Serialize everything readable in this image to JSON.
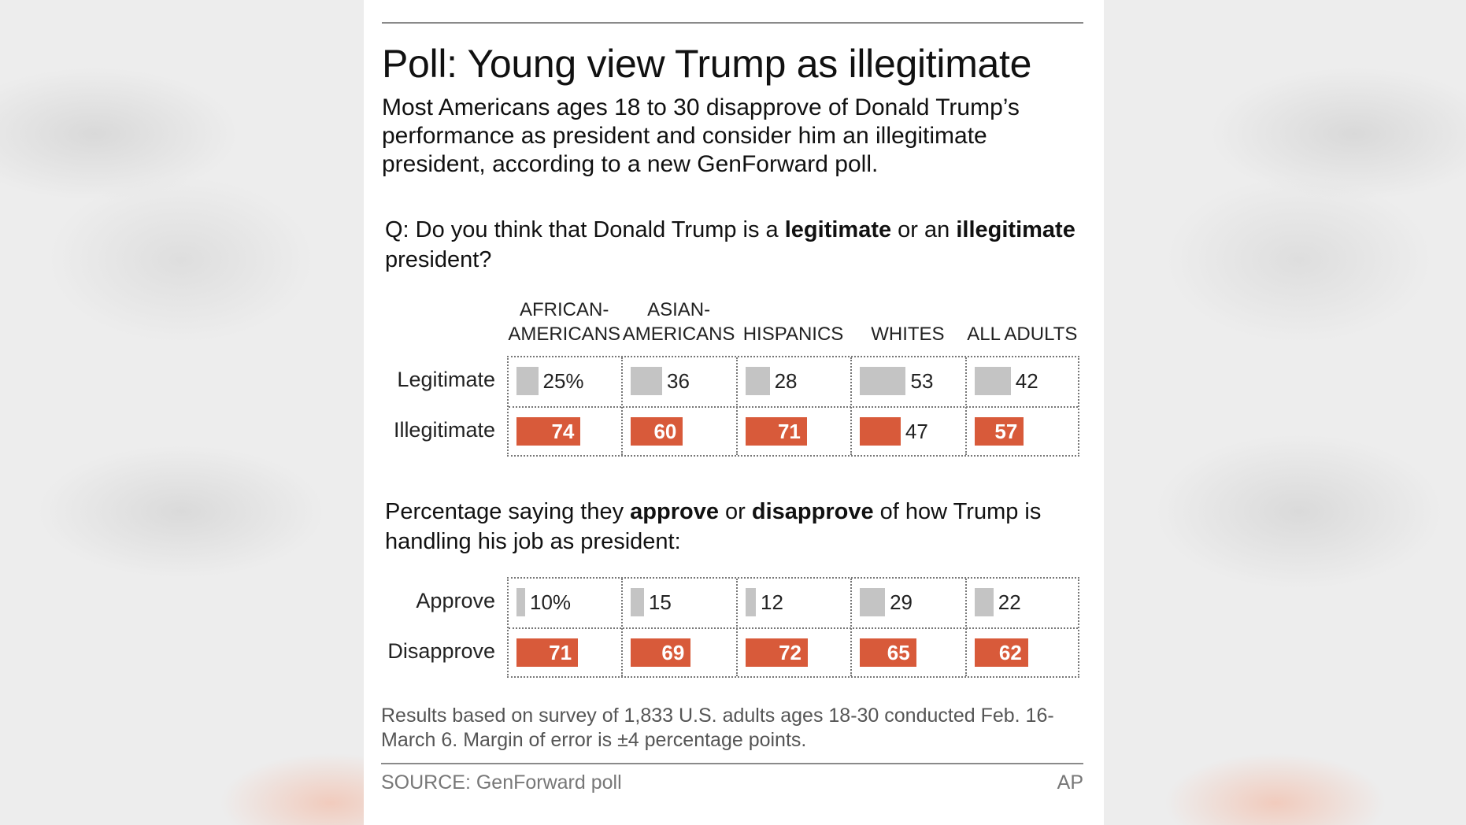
{
  "title": "Poll: Young view Trump as illegitimate",
  "subtitle": "Most Americans ages 18 to 30 disapprove of Donald Trump’s performance as president and consider him an illegitimate president, according to a new GenForward poll.",
  "q1": {
    "pre": "Q: Do you think that Donald Trump is a ",
    "b1": "legitimate",
    "mid": " or an ",
    "b2": "illegitimate",
    "post": " president?"
  },
  "q2": {
    "pre": "Percentage saying they ",
    "b1": "approve",
    "mid": " or ",
    "b2": "disapprove",
    "post": " of how Trump is handling his job as president:"
  },
  "note": "Results based on survey of 1,833 U.S. adults ages 18-30 conducted Feb. 16-March 6. Margin of error is ±4 percentage points.",
  "source": "SOURCE: GenForward poll",
  "credit": "AP",
  "colors": {
    "grey_bar": "#c4c4c4",
    "red_bar": "#d85a3a"
  },
  "chart_data": [
    {
      "type": "bar",
      "categories": [
        [
          "AFRICAN-",
          "AMERICANS"
        ],
        [
          "ASIAN-",
          "AMERICANS"
        ],
        [
          "",
          "HISPANICS"
        ],
        [
          "",
          "WHITES"
        ],
        [
          "",
          "ALL ADULTS"
        ]
      ],
      "series": [
        {
          "name": "Legitimate",
          "values": [
            25,
            36,
            28,
            53,
            42
          ],
          "labels": [
            "25%",
            "36",
            "28",
            "53",
            "42"
          ],
          "color": "#c4c4c4"
        },
        {
          "name": "Illegitimate",
          "values": [
            74,
            60,
            71,
            47,
            57
          ],
          "labels": [
            "74",
            "60",
            "71",
            "47",
            "57"
          ],
          "color": "#d85a3a"
        }
      ],
      "ylim": [
        0,
        100
      ]
    },
    {
      "type": "bar",
      "categories": [
        [
          "AFRICAN-",
          "AMERICANS"
        ],
        [
          "ASIAN-",
          "AMERICANS"
        ],
        [
          "",
          "HISPANICS"
        ],
        [
          "",
          "WHITES"
        ],
        [
          "",
          "ALL ADULTS"
        ]
      ],
      "series": [
        {
          "name": "Approve",
          "values": [
            10,
            15,
            12,
            29,
            22
          ],
          "labels": [
            "10%",
            "15",
            "12",
            "29",
            "22"
          ],
          "color": "#c4c4c4"
        },
        {
          "name": "Disapprove",
          "values": [
            71,
            69,
            72,
            65,
            62
          ],
          "labels": [
            "71",
            "69",
            "72",
            "65",
            "62"
          ],
          "color": "#d85a3a"
        }
      ],
      "ylim": [
        0,
        100
      ]
    }
  ]
}
